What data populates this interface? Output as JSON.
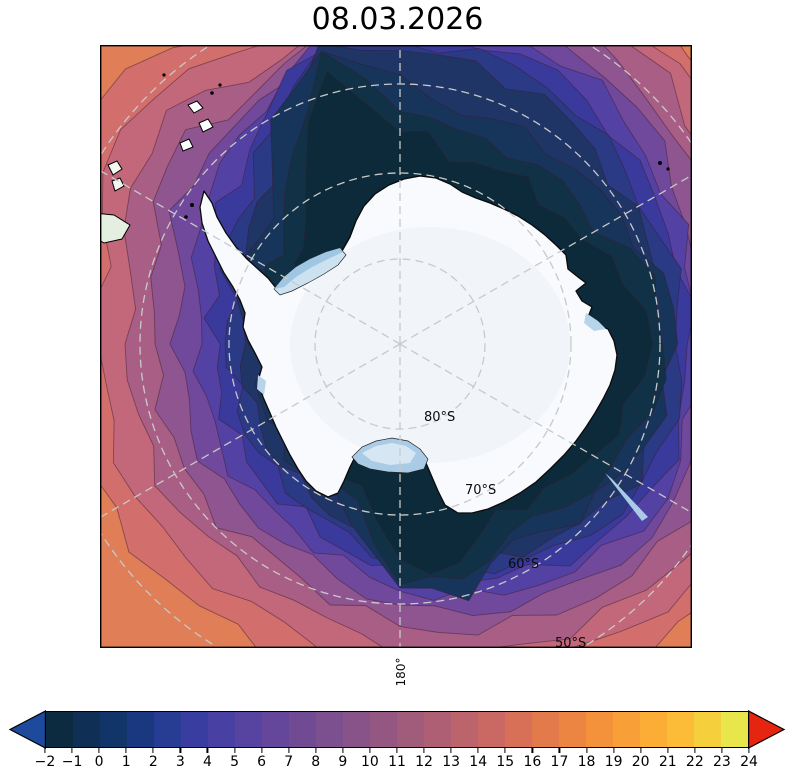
{
  "title": "08.03.2026",
  "map": {
    "labels": {
      "lat80": "80°S",
      "lat70": "70°S",
      "lat60": "60°S",
      "lat50": "50°S",
      "lon180": "180°"
    }
  },
  "colorbar": {
    "min": -2,
    "max": 24,
    "tick_labels": [
      "−2",
      "−1",
      "0",
      "1",
      "2",
      "3",
      "4",
      "5",
      "6",
      "7",
      "8",
      "9",
      "10",
      "11",
      "12",
      "13",
      "14",
      "15",
      "16",
      "17",
      "18",
      "19",
      "20",
      "21",
      "22",
      "23",
      "24"
    ],
    "segment_colors": [
      "#0d2b40",
      "#0f3054",
      "#123569",
      "#1a3880",
      "#273c93",
      "#393da0",
      "#4940a4",
      "#5743a0",
      "#64479a",
      "#704b94",
      "#7c4f8e",
      "#885388",
      "#945782",
      "#a15b7b",
      "#ae5f74",
      "#bc646c",
      "#ca6963",
      "#d87058",
      "#e37a4c",
      "#ed8542",
      "#f4923b",
      "#f89f37",
      "#fbad35",
      "#fcbc38",
      "#f6d03c",
      "#e8e64a"
    ],
    "under_color": "#1d4a9c",
    "over_color": "#e5250f"
  }
}
